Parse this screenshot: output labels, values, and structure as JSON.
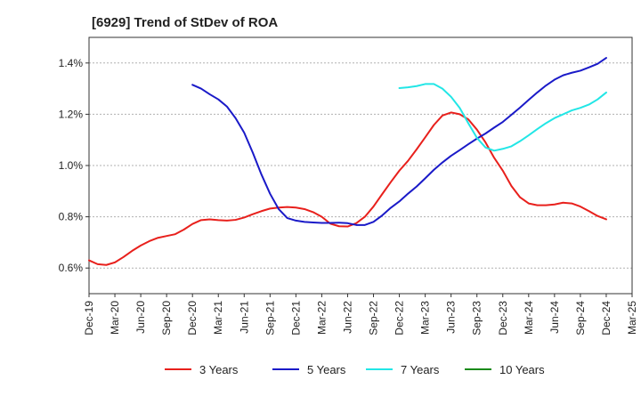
{
  "chart_data": {
    "type": "line",
    "title": "[6929]  Trend of StDev of ROA",
    "xlabel": "",
    "ylabel": "",
    "ylim": [
      0.5,
      1.5
    ],
    "x_ticks": [
      "Dec-19",
      "Mar-20",
      "Jun-20",
      "Sep-20",
      "Dec-20",
      "Mar-21",
      "Jun-21",
      "Sep-21",
      "Dec-21",
      "Mar-22",
      "Jun-22",
      "Sep-22",
      "Dec-22",
      "Mar-23",
      "Jun-23",
      "Sep-23",
      "Dec-23",
      "Mar-24",
      "Jun-24",
      "Sep-24",
      "Dec-24",
      "Mar-25"
    ],
    "y_ticks": [
      {
        "value": 0.6,
        "label": "0.6%"
      },
      {
        "value": 0.8,
        "label": "0.8%"
      },
      {
        "value": 1.0,
        "label": "1.0%"
      },
      {
        "value": 1.2,
        "label": "1.2%"
      },
      {
        "value": 1.4,
        "label": "1.4%"
      }
    ],
    "grid": "horizontal dashed",
    "legend_position": "bottom",
    "series": [
      {
        "name": "3 Years",
        "color": "#e8201c",
        "points": [
          [
            "Dec-19",
            0.63
          ],
          [
            "Jan-20",
            0.615
          ],
          [
            "Feb-20",
            0.612
          ],
          [
            "Mar-20",
            0.622
          ],
          [
            "Apr-20",
            0.643
          ],
          [
            "May-20",
            0.667
          ],
          [
            "Jun-20",
            0.688
          ],
          [
            "Jul-20",
            0.705
          ],
          [
            "Aug-20",
            0.718
          ],
          [
            "Sep-20",
            0.725
          ],
          [
            "Oct-20",
            0.732
          ],
          [
            "Nov-20",
            0.75
          ],
          [
            "Dec-20",
            0.772
          ],
          [
            "Jan-21",
            0.787
          ],
          [
            "Feb-21",
            0.79
          ],
          [
            "Mar-21",
            0.787
          ],
          [
            "Apr-21",
            0.785
          ],
          [
            "May-21",
            0.788
          ],
          [
            "Jun-21",
            0.797
          ],
          [
            "Jul-21",
            0.81
          ],
          [
            "Aug-21",
            0.822
          ],
          [
            "Sep-21",
            0.832
          ],
          [
            "Oct-21",
            0.836
          ],
          [
            "Nov-21",
            0.838
          ],
          [
            "Dec-21",
            0.836
          ],
          [
            "Jan-22",
            0.83
          ],
          [
            "Feb-22",
            0.818
          ],
          [
            "Mar-22",
            0.8
          ],
          [
            "Apr-22",
            0.773
          ],
          [
            "May-22",
            0.763
          ],
          [
            "Jun-22",
            0.762
          ],
          [
            "Jul-22",
            0.775
          ],
          [
            "Aug-22",
            0.8
          ],
          [
            "Sep-22",
            0.84
          ],
          [
            "Oct-22",
            0.888
          ],
          [
            "Nov-22",
            0.935
          ],
          [
            "Dec-22",
            0.98
          ],
          [
            "Jan-23",
            1.018
          ],
          [
            "Feb-23",
            1.063
          ],
          [
            "Mar-23",
            1.11
          ],
          [
            "Apr-23",
            1.158
          ],
          [
            "May-23",
            1.195
          ],
          [
            "Jun-23",
            1.207
          ],
          [
            "Jul-23",
            1.2
          ],
          [
            "Aug-23",
            1.18
          ],
          [
            "Sep-23",
            1.14
          ],
          [
            "Oct-23",
            1.09
          ],
          [
            "Nov-23",
            1.03
          ],
          [
            "Dec-23",
            0.98
          ],
          [
            "Jan-24",
            0.92
          ],
          [
            "Feb-24",
            0.876
          ],
          [
            "Mar-24",
            0.852
          ],
          [
            "Apr-24",
            0.845
          ],
          [
            "May-24",
            0.845
          ],
          [
            "Jun-24",
            0.848
          ],
          [
            "Jul-24",
            0.855
          ],
          [
            "Aug-24",
            0.852
          ],
          [
            "Sep-24",
            0.84
          ],
          [
            "Oct-24",
            0.822
          ],
          [
            "Nov-24",
            0.803
          ],
          [
            "Dec-24",
            0.79
          ]
        ]
      },
      {
        "name": "5 Years",
        "color": "#1a1ac8",
        "points": [
          [
            "Dec-20",
            1.315
          ],
          [
            "Jan-21",
            1.3
          ],
          [
            "Feb-21",
            1.278
          ],
          [
            "Mar-21",
            1.258
          ],
          [
            "Apr-21",
            1.23
          ],
          [
            "May-21",
            1.185
          ],
          [
            "Jun-21",
            1.128
          ],
          [
            "Jul-21",
            1.05
          ],
          [
            "Aug-21",
            0.965
          ],
          [
            "Sep-21",
            0.89
          ],
          [
            "Oct-21",
            0.83
          ],
          [
            "Nov-21",
            0.795
          ],
          [
            "Dec-21",
            0.785
          ],
          [
            "Jan-22",
            0.78
          ],
          [
            "Feb-22",
            0.778
          ],
          [
            "Mar-22",
            0.776
          ],
          [
            "Apr-22",
            0.776
          ],
          [
            "May-22",
            0.777
          ],
          [
            "Jun-22",
            0.775
          ],
          [
            "Jul-22",
            0.768
          ],
          [
            "Aug-22",
            0.768
          ],
          [
            "Sep-22",
            0.78
          ],
          [
            "Oct-22",
            0.805
          ],
          [
            "Nov-22",
            0.835
          ],
          [
            "Dec-22",
            0.86
          ],
          [
            "Jan-23",
            0.89
          ],
          [
            "Feb-23",
            0.918
          ],
          [
            "Mar-23",
            0.95
          ],
          [
            "Apr-23",
            0.983
          ],
          [
            "May-23",
            1.012
          ],
          [
            "Jun-23",
            1.038
          ],
          [
            "Jul-23",
            1.06
          ],
          [
            "Aug-23",
            1.083
          ],
          [
            "Sep-23",
            1.105
          ],
          [
            "Oct-23",
            1.125
          ],
          [
            "Nov-23",
            1.148
          ],
          [
            "Dec-23",
            1.17
          ],
          [
            "Jan-24",
            1.198
          ],
          [
            "Feb-24",
            1.226
          ],
          [
            "Mar-24",
            1.256
          ],
          [
            "Apr-24",
            1.285
          ],
          [
            "May-24",
            1.312
          ],
          [
            "Jun-24",
            1.335
          ],
          [
            "Jul-24",
            1.352
          ],
          [
            "Aug-24",
            1.362
          ],
          [
            "Sep-24",
            1.37
          ],
          [
            "Oct-24",
            1.383
          ],
          [
            "Nov-24",
            1.397
          ],
          [
            "Dec-24",
            1.42
          ]
        ]
      },
      {
        "name": "7 Years",
        "color": "#22e6e6",
        "points": [
          [
            "Dec-22",
            1.302
          ],
          [
            "Jan-23",
            1.305
          ],
          [
            "Feb-23",
            1.31
          ],
          [
            "Mar-23",
            1.318
          ],
          [
            "Apr-23",
            1.318
          ],
          [
            "May-23",
            1.3
          ],
          [
            "Jun-23",
            1.268
          ],
          [
            "Jul-23",
            1.225
          ],
          [
            "Aug-23",
            1.165
          ],
          [
            "Sep-23",
            1.108
          ],
          [
            "Oct-23",
            1.07
          ],
          [
            "Nov-23",
            1.058
          ],
          [
            "Dec-23",
            1.065
          ],
          [
            "Jan-24",
            1.075
          ],
          [
            "Feb-24",
            1.095
          ],
          [
            "Mar-24",
            1.118
          ],
          [
            "Apr-24",
            1.142
          ],
          [
            "May-24",
            1.165
          ],
          [
            "Jun-24",
            1.185
          ],
          [
            "Jul-24",
            1.2
          ],
          [
            "Aug-24",
            1.215
          ],
          [
            "Sep-24",
            1.225
          ],
          [
            "Oct-24",
            1.238
          ],
          [
            "Nov-24",
            1.258
          ],
          [
            "Dec-24",
            1.285
          ]
        ]
      },
      {
        "name": "10 Years",
        "color": "#1a8a1a",
        "points": []
      }
    ]
  }
}
